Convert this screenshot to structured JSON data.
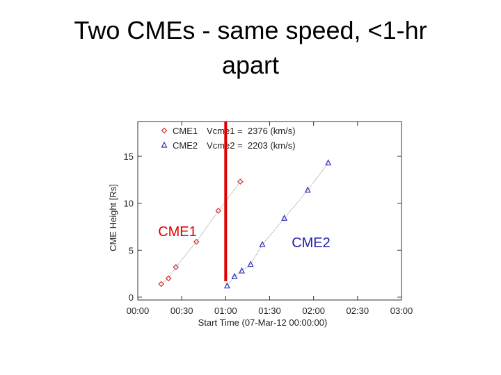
{
  "chart_data": {
    "type": "scatter",
    "title": "Two CMEs - same speed, <1-hr apart",
    "x_label": "Start Time (07-Mar-12 00:00:00)",
    "y_label": "CME Height [Rs]",
    "xlim": [
      0,
      180
    ],
    "ylim": [
      -0.3,
      18.7
    ],
    "xticks": [
      {
        "value": 0,
        "label": "00:00"
      },
      {
        "value": 30,
        "label": "00:30"
      },
      {
        "value": 60,
        "label": "01:00"
      },
      {
        "value": 90,
        "label": "01:30"
      },
      {
        "value": 120,
        "label": "02:00"
      },
      {
        "value": 150,
        "label": "02:30"
      },
      {
        "value": 180,
        "label": "03:00"
      }
    ],
    "yticks": [
      0,
      5,
      10,
      15
    ],
    "series": [
      {
        "name": "CME1",
        "color": "#d03030",
        "marker": "diamond",
        "speed_label": "Vcme1 =  2376 (km/s)",
        "x": [
          16,
          21,
          26,
          40,
          55,
          70
        ],
        "values": [
          1.4,
          2.0,
          3.2,
          5.9,
          9.2,
          12.3
        ]
      },
      {
        "name": "CME2",
        "color": "#3030c0",
        "marker": "triangle",
        "speed_label": "Vcme2 =  2203 (km/s)",
        "x": [
          61,
          66,
          71,
          77,
          85,
          100,
          116,
          130
        ],
        "values": [
          1.2,
          2.2,
          2.8,
          3.5,
          5.6,
          8.4,
          11.4,
          14.3
        ]
      }
    ],
    "vline": {
      "x": 60,
      "color": "#e00000"
    },
    "annotations": [
      {
        "text": "CME1",
        "color": "#e00000"
      },
      {
        "text": "CME2",
        "color": "#2020b0"
      }
    ]
  }
}
